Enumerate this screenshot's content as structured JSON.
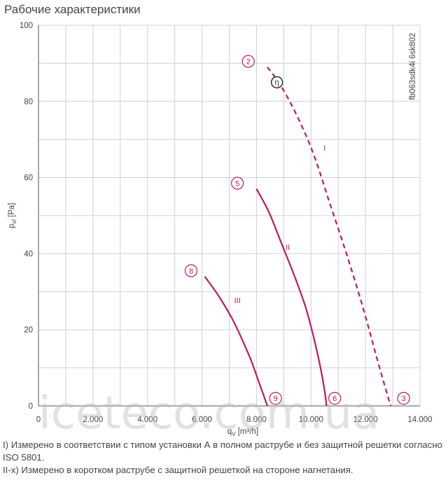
{
  "title": "Рабочие характеристики",
  "notes": [
    "I) Измерено в соответствии с типом установки А в полном раструбе и без защитной решетки согласно",
    "ISO 5801.",
    "II-x) Измерено в коротком раструбе с защитной решеткой на стороне нагнетания."
  ],
  "watermark": "iceteco.com.ua",
  "chart_data": {
    "type": "line",
    "title": "Рабочие характеристики",
    "xlabel": "q_V [m³/h]",
    "ylabel": "p_sf [Pa]",
    "xlim": [
      0,
      14000
    ],
    "ylim": [
      0,
      100
    ],
    "x_ticks": [
      0,
      2000,
      4000,
      6000,
      8000,
      10000,
      12000,
      14000
    ],
    "x_tick_labels": [
      "0",
      "2.000",
      "4.000",
      "6.000",
      "8.000",
      "10.000",
      "12.000",
      "14.000"
    ],
    "y_ticks": [
      0,
      20,
      40,
      60,
      80,
      100
    ],
    "y_tick_labels": [
      "0",
      "20",
      "40",
      "60",
      "80",
      "100"
    ],
    "x_grid_step": 1000,
    "y_grid_step": 10,
    "grid": true,
    "side_label": "fb063sdk4i 6sk802",
    "colors": {
      "curve": "#c2185b",
      "grid": "#d0d0d0",
      "axis": "#555555"
    },
    "series": [
      {
        "name": "I",
        "style": "dashed",
        "x": [
          8400,
          8900,
          9500,
          10100,
          10700,
          11300,
          11900,
          12400,
          12800,
          12930
        ],
        "y": [
          89,
          84,
          76,
          66,
          53,
          40,
          26,
          13,
          3,
          0
        ],
        "start_marker": "2",
        "end_marker": "3",
        "eta_marker_at": [
          8750,
          85
        ]
      },
      {
        "name": "II",
        "style": "solid",
        "x": [
          8000,
          8450,
          8900,
          9400,
          9800,
          10100,
          10350,
          10500,
          10570
        ],
        "y": [
          57,
          51,
          43,
          34,
          26,
          18,
          10,
          4,
          0
        ],
        "start_marker": "5",
        "end_marker": "6"
      },
      {
        "name": "III",
        "style": "solid",
        "x": [
          6100,
          6600,
          7100,
          7500,
          7800,
          8050,
          8250,
          8400
        ],
        "y": [
          34,
          29,
          23,
          17,
          12,
          7,
          3,
          0
        ],
        "start_marker": "8",
        "end_marker": "9"
      }
    ],
    "markers": {
      "2": {
        "x": 7700,
        "y": 90.5
      },
      "5": {
        "x": 7300,
        "y": 58.5
      },
      "8": {
        "x": 5600,
        "y": 35.5
      },
      "3": {
        "x": 13400,
        "y": 2
      },
      "6": {
        "x": 10870,
        "y": 2
      },
      "9": {
        "x": 8700,
        "y": 2
      }
    },
    "series_label_positions": {
      "I": {
        "x": 10500,
        "y": 67
      },
      "II": {
        "x": 9150,
        "y": 41
      },
      "III": {
        "x": 7300,
        "y": 27
      }
    },
    "eta_label": "η"
  }
}
